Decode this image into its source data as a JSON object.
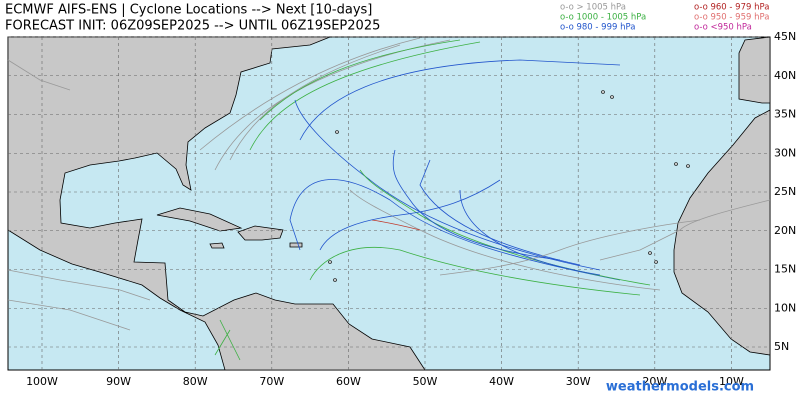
{
  "header": {
    "title": "ECMWF AIFS-ENS | Cyclone Locations --> Next [10-days]",
    "subtitle": "FORECAST INIT: 06Z09SEP2025 --> UNTIL 06Z19SEP2025"
  },
  "legend": [
    {
      "label": "o-o > 1005 hPa",
      "color": "#999999"
    },
    {
      "label": "o-o 1000 - 1005 hPa",
      "color": "#3cb043"
    },
    {
      "label": "o-o 980 - 999 hPa",
      "color": "#2255cc"
    },
    {
      "label": "o-o 960 - 979 hPa",
      "color": "#b22222"
    },
    {
      "label": "o-o 950 - 959 hPa",
      "color": "#e07070"
    },
    {
      "label": "o-o <950 hPa",
      "color": "#c0289a"
    }
  ],
  "map": {
    "longitude_labels": [
      "100W",
      "90W",
      "80W",
      "70W",
      "60W",
      "50W",
      "40W",
      "30W",
      "20W",
      "10W"
    ],
    "latitude_labels": [
      "45N",
      "40N",
      "35N",
      "30N",
      "25N",
      "20N",
      "15N",
      "10N",
      "5N"
    ]
  },
  "watermark": "weathermodels.com"
}
